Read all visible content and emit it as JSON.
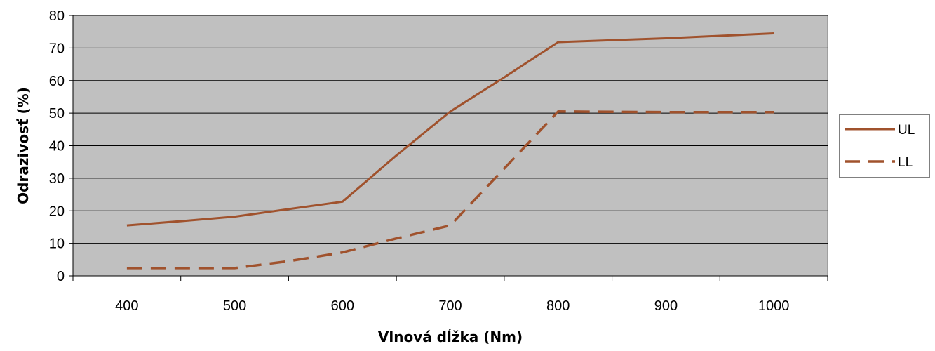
{
  "chart_data": {
    "type": "line",
    "title": "",
    "xlabel": "Vlnová dĺžka (Nm)",
    "ylabel": "Odrazivosť (%)",
    "categories": [
      "400",
      "500",
      "600",
      "700",
      "800",
      "900",
      "1000"
    ],
    "ylim": [
      0,
      80
    ],
    "yticks": [
      0,
      10,
      20,
      30,
      40,
      50,
      60,
      70,
      80
    ],
    "grid": true,
    "legend_position": "right",
    "plot_background": "#c0c0c0",
    "series": [
      {
        "name": "UL",
        "style": "solid",
        "color": "#a0522d",
        "points": [
          [
            400,
            15.5
          ],
          [
            450,
            16.8
          ],
          [
            500,
            18.2
          ],
          [
            550,
            20.5
          ],
          [
            600,
            22.8
          ],
          [
            650,
            37
          ],
          [
            700,
            50.5
          ],
          [
            750,
            61
          ],
          [
            800,
            71.8
          ],
          [
            900,
            73
          ],
          [
            1000,
            74.5
          ]
        ]
      },
      {
        "name": "LL",
        "style": "dashed",
        "color": "#a0522d",
        "points": [
          [
            400,
            2.4
          ],
          [
            450,
            2.4
          ],
          [
            500,
            2.4
          ],
          [
            550,
            4.5
          ],
          [
            600,
            7.2
          ],
          [
            650,
            11.5
          ],
          [
            700,
            15.5
          ],
          [
            750,
            33
          ],
          [
            800,
            50.5
          ],
          [
            900,
            50.3
          ],
          [
            1000,
            50.3
          ]
        ]
      }
    ]
  }
}
